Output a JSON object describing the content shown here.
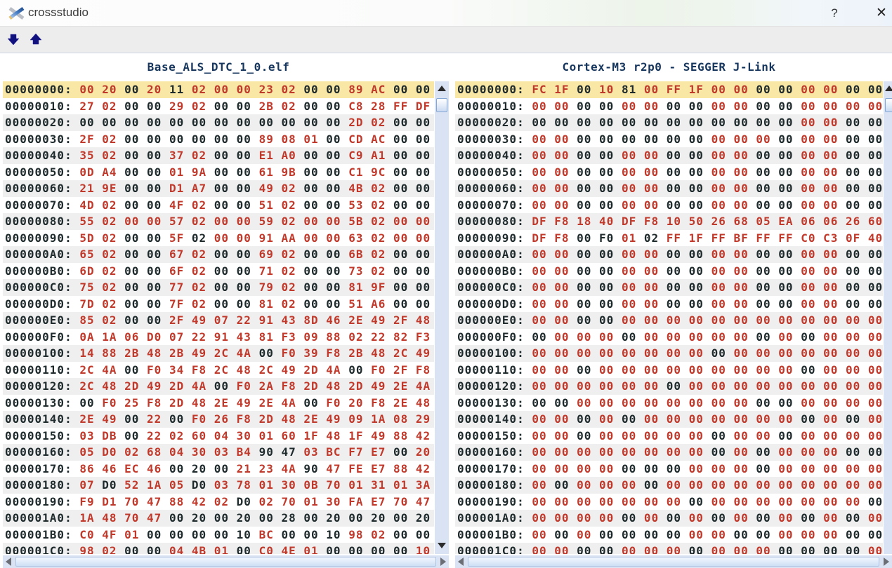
{
  "window": {
    "title": "crossstudio",
    "help_label": "?",
    "close_label": "✕"
  },
  "toolbar": {
    "buttons": [
      {
        "name": "next-difference",
        "icon": "arrow-down-icon"
      },
      {
        "name": "previous-difference",
        "icon": "arrow-up-icon"
      }
    ]
  },
  "icons": {
    "app_logo": "crossstudio-x-logo",
    "scrollbar": [
      "scroll-up-icon",
      "scroll-down-icon",
      "scroll-left-icon",
      "scroll-right-icon"
    ]
  },
  "colors": {
    "diff_red": "#c0392b",
    "normal_dark": "#1e2a2c",
    "header_navy": "#17365d",
    "selected_row": "#f8e7a5",
    "row_stripe": "#efefef",
    "scroll_track": "#d9e3f3",
    "toolbar_arrow_navy": "#10107e"
  },
  "left_panel": {
    "title": "Base_ALS_DTC_1_0.elf",
    "rows": [
      [
        "00000000",
        "00 20 00 20 11 02 00 00 23 02 00 00 89 AC 00 00",
        "rrkrkrrrrrkkrrkk"
      ],
      [
        "00000010",
        "27 02 00 00 29 02 00 00 2B 02 00 00 C8 28 FF DF",
        "rrkkrrkkrrkkrrrr"
      ],
      [
        "00000020",
        "00 00 00 00 00 00 00 00 00 00 00 00 2D 02 00 00",
        "kkkkkkkkkkkkrrkk"
      ],
      [
        "00000030",
        "2F 02 00 00 00 00 00 00 89 08 01 00 CD AC 00 00",
        "rrkkkkkkrrrkrrkk"
      ],
      [
        "00000040",
        "35 02 00 00 37 02 00 00 E1 A0 00 00 C9 A1 00 00",
        "rrkkrrkkrrkkrrkk"
      ],
      [
        "00000050",
        "0D A4 00 00 01 9A 00 00 61 9B 00 00 C1 9C 00 00",
        "rrkkrrkkrrkkrrkk"
      ],
      [
        "00000060",
        "21 9E 00 00 D1 A7 00 00 49 02 00 00 4B 02 00 00",
        "rrkkrrkkrrkkrrkk"
      ],
      [
        "00000070",
        "4D 02 00 00 4F 02 00 00 51 02 00 00 53 02 00 00",
        "rrkkrrkkrrkkrrkk"
      ],
      [
        "00000080",
        "55 02 00 00 57 02 00 00 59 02 00 00 5B 02 00 00",
        "rrrrrrrrrrrrrrrr"
      ],
      [
        "00000090",
        "5D 02 00 00 5F 02 00 00 91 AA 00 00 63 02 00 00",
        "rrkkrkrrrrrrrrrr"
      ],
      [
        "000000A0",
        "65 02 00 00 67 02 00 00 69 02 00 00 6B 02 00 00",
        "rrkkrrkkrrkkrrkk"
      ],
      [
        "000000B0",
        "6D 02 00 00 6F 02 00 00 71 02 00 00 73 02 00 00",
        "rrkkrrkkrrkkrrkk"
      ],
      [
        "000000C0",
        "75 02 00 00 77 02 00 00 79 02 00 00 81 9F 00 00",
        "rrkkrrkkrrkkrrkk"
      ],
      [
        "000000D0",
        "7D 02 00 00 7F 02 00 00 81 02 00 00 51 A6 00 00",
        "rrkkrrkkrrkkrrkk"
      ],
      [
        "000000E0",
        "85 02 00 00 2F 49 07 22 91 43 8D 46 2E 49 2F 48",
        "rrkkrrrrrrrrrrrr"
      ],
      [
        "000000F0",
        "0A 1A 06 D0 07 22 91 43 81 F3 09 88 02 22 82 F3",
        "rrrrrrrrrrrrrrrr"
      ],
      [
        "00000100",
        "14 88 2B 48 2B 49 2C 4A 00 F0 39 F8 2B 48 2C 49",
        "rrrrrrrrkrrrrrrr"
      ],
      [
        "00000110",
        "2C 4A 00 F0 34 F8 2C 48 2C 49 2D 4A 00 F0 2F F8",
        "rrkrrrrrrrrrkrrr"
      ],
      [
        "00000120",
        "2C 48 2D 49 2D 4A 00 F0 2A F8 2D 48 2D 49 2E 4A",
        "rrrrrrkrrrrrrrrr"
      ],
      [
        "00000130",
        "00 F0 25 F8 2D 48 2E 49 2E 4A 00 F0 20 F8 2E 48",
        "krrrrrrrrrkrrrrr"
      ],
      [
        "00000140",
        "2E 49 00 22 00 F0 26 F8 2D 48 2E 49 09 1A 08 29",
        "rrkrkrrrrrrrrrrr"
      ],
      [
        "00000150",
        "03 DB 00 22 02 60 04 30 01 60 1F 48 1F 49 88 42",
        "rrkrrrrrrrrrrrrr"
      ],
      [
        "00000160",
        "05 D0 02 68 04 30 03 B4 90 47 03 BC F7 E7 00 20",
        "rrrrrrrrkkrrrrkr"
      ],
      [
        "00000170",
        "86 46 EC 46 00 20 00 21 23 4A 90 47 FE E7 88 42",
        "rrrrkkkrrrkrrrrr"
      ],
      [
        "00000180",
        "07 D0 52 1A 05 D0 03 78 01 30 0B 70 01 31 01 3A",
        "rkrrrkrrrrrrrrrr"
      ],
      [
        "00000190",
        "F9 D1 70 47 88 42 02 D0 02 70 01 30 FA E7 70 47",
        "rrrrrrrkrrrrrrrr"
      ],
      [
        "000001A0",
        "1A 48 70 47 00 20 00 20 00 28 00 20 00 20 00 20",
        "rrrrkkkkkkkkkkkk"
      ],
      [
        "000001B0",
        "C0 4F 01 00 00 00 00 10 BC 00 00 10 98 02 00 00",
        "rrrkkkkkrkkkrrkk"
      ],
      [
        "000001C0",
        "98 02 00 00 04 4B 01 00 C0 4E 01 00 00 00 00 10",
        "rrkkrrrkrrrkkkkr"
      ]
    ]
  },
  "right_panel": {
    "title": "Cortex-M3 r2p0 - SEGGER J-Link",
    "rows": [
      [
        "00000000",
        "FC 1F 00 10 81 00 FF 1F 00 00 00 00 00 00 00 00",
        "rrkrkrrrrrkkrrkk"
      ],
      [
        "00000010",
        "00 00 00 00 00 00 00 00 00 00 00 00 00 00 00 00",
        "rrkkrrkkrrkkrrrr"
      ],
      [
        "00000020",
        "00 00 00 00 00 00 00 00 00 00 00 00 00 00 00 00",
        "kkkkkkkkkkkkrrkk"
      ],
      [
        "00000030",
        "00 00 00 00 00 00 00 00 00 00 00 00 00 00 00 00",
        "rrkkkkkkrrrkrrkk"
      ],
      [
        "00000040",
        "00 00 00 00 00 00 00 00 00 00 00 00 00 00 00 00",
        "rrkkrrkkrrkkrrkk"
      ],
      [
        "00000050",
        "00 00 00 00 00 00 00 00 00 00 00 00 00 00 00 00",
        "rrkkrrkkrrkkrrkk"
      ],
      [
        "00000060",
        "00 00 00 00 00 00 00 00 00 00 00 00 00 00 00 00",
        "rrkkrrkkrrkkrrkk"
      ],
      [
        "00000070",
        "00 00 00 00 00 00 00 00 00 00 00 00 00 00 00 00",
        "rrkkrrkkrrkkrrkk"
      ],
      [
        "00000080",
        "DF F8 18 40 DF F8 10 50 26 68 05 EA 06 06 26 60",
        "rrrrrrrrrrrrrrrr"
      ],
      [
        "00000090",
        "DF F8 00 F0 01 02 FF 1F FF BF FF FF C0 C3 0F 40",
        "rrkkrkrrrrrrrrrr"
      ],
      [
        "000000A0",
        "00 00 00 00 00 00 00 00 00 00 00 00 00 00 00 00",
        "rrkkrrkkrrkkrrkk"
      ],
      [
        "000000B0",
        "00 00 00 00 00 00 00 00 00 00 00 00 00 00 00 00",
        "rrkkrrkkrrkkrrkk"
      ],
      [
        "000000C0",
        "00 00 00 00 00 00 00 00 00 00 00 00 00 00 00 00",
        "rrkkrrkkrrkkrrkk"
      ],
      [
        "000000D0",
        "00 00 00 00 00 00 00 00 00 00 00 00 00 00 00 00",
        "rrkkrrkkrrkkrrkk"
      ],
      [
        "000000E0",
        "00 00 00 00 00 00 00 00 00 00 00 00 00 00 00 00",
        "rrkkrrrrrrrrrrrr"
      ],
      [
        "000000F0",
        "00 00 00 00 00 00 00 00 00 00 00 00 00 00 00 00",
        "krrrkrrrrrkrkrrr"
      ],
      [
        "00000100",
        "00 00 00 00 00 00 00 00 00 00 00 00 00 00 00 00",
        "rrrrrrrrkrrrrrrr"
      ],
      [
        "00000110",
        "00 00 00 00 00 00 00 00 00 00 00 00 00 00 00 00",
        "rrkrrrrrrrrrkrrr"
      ],
      [
        "00000120",
        "00 00 00 00 00 00 00 00 00 00 00 00 00 00 00 00",
        "rrrrrrkrrrrrrrrr"
      ],
      [
        "00000130",
        "00 00 00 00 00 00 00 00 00 00 00 00 00 00 00 00",
        "kkrrrrrrrrkkrrrr"
      ],
      [
        "00000140",
        "00 00 00 00 00 00 00 00 00 00 00 00 00 00 00 00",
        "rrkrkrrrrrrrkrkr"
      ],
      [
        "00000150",
        "00 00 00 00 00 00 00 00 00 00 00 00 00 00 00 00",
        "rrkrrrrrkrrkrrrr"
      ],
      [
        "00000160",
        "00 00 00 00 00 00 00 00 00 00 00 00 00 00 00 00",
        "rrrrrrrrkrkrrrkk"
      ],
      [
        "00000170",
        "00 00 00 00 00 00 00 00 00 00 00 00 00 00 00 00",
        "rrrrkkkrrrkrrrrr"
      ],
      [
        "00000180",
        "00 00 00 00 00 00 00 00 00 00 00 00 00 00 00 00",
        "rkrrrkrrrrrrrrrr"
      ],
      [
        "00000190",
        "00 00 00 00 00 00 00 00 00 00 00 00 00 00 00 00",
        "rrrrrrrkrrrrrrrk"
      ],
      [
        "000001A0",
        "00 00 00 00 00 00 00 00 00 00 00 00 00 00 00 00",
        "rrrrkrkrkrkrkrkr"
      ],
      [
        "000001B0",
        "00 00 00 00 00 00 00 00 00 00 00 00 00 00 00 00",
        "rkrkkkkrrkkrrrkk"
      ],
      [
        "000001C0",
        "00 00 00 00 00 00 00 00 00 00 00 00 00 00 00 00",
        "rrkkrrrkrrrkkkkr"
      ]
    ]
  }
}
